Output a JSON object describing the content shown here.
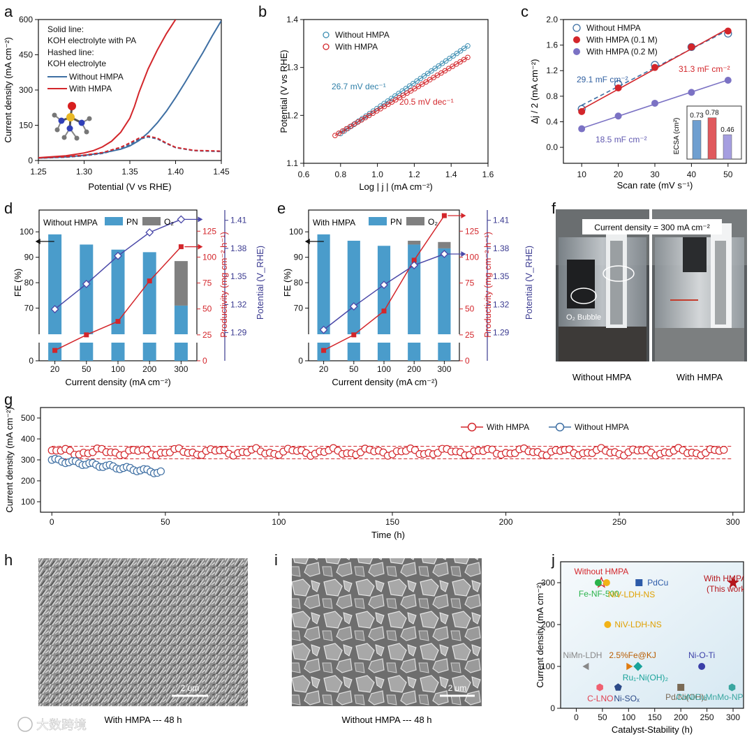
{
  "chart_data": [
    {
      "panel": "a",
      "type": "line",
      "xlabel": "Potential (V vs RHE)",
      "ylabel": "Current density (mA cm⁻²)",
      "xlim": [
        1.25,
        1.45
      ],
      "ylim": [
        0,
        600
      ],
      "xticks": [
        1.25,
        1.3,
        1.35,
        1.4,
        1.45
      ],
      "yticks": [
        0,
        150,
        300,
        450,
        600
      ],
      "notes": [
        "Solid line:",
        "KOH electrolyte with PA",
        "Hashed line:",
        "KOH electrolyte"
      ],
      "series": [
        {
          "name": "Without HMPA",
          "color": "#3e6fa3",
          "style": "solid",
          "x": [
            1.25,
            1.28,
            1.3,
            1.32,
            1.34,
            1.35,
            1.36,
            1.37,
            1.38,
            1.39,
            1.4,
            1.41,
            1.42,
            1.43,
            1.44,
            1.45
          ],
          "y": [
            10,
            15,
            22,
            32,
            48,
            62,
            85,
            118,
            160,
            210,
            268,
            330,
            395,
            460,
            530,
            595
          ]
        },
        {
          "name": "With HMPA",
          "color": "#d3262b",
          "style": "solid",
          "x": [
            1.25,
            1.28,
            1.3,
            1.31,
            1.32,
            1.33,
            1.34,
            1.35,
            1.355,
            1.36,
            1.37,
            1.38,
            1.39,
            1.4
          ],
          "y": [
            12,
            20,
            32,
            42,
            58,
            82,
            120,
            180,
            230,
            290,
            390,
            470,
            540,
            600
          ]
        },
        {
          "name": "Without HMPA (KOH)",
          "color": "#3e6fa3",
          "style": "dashed",
          "x": [
            1.25,
            1.28,
            1.3,
            1.32,
            1.34,
            1.35,
            1.36,
            1.37,
            1.38,
            1.39,
            1.4,
            1.42,
            1.45
          ],
          "y": [
            10,
            14,
            20,
            30,
            50,
            68,
            90,
            100,
            92,
            72,
            55,
            42,
            38
          ]
        },
        {
          "name": "With HMPA (KOH)",
          "color": "#d3262b",
          "style": "dashed",
          "x": [
            1.25,
            1.28,
            1.3,
            1.32,
            1.34,
            1.35,
            1.36,
            1.37,
            1.38,
            1.39,
            1.4,
            1.42,
            1.45
          ],
          "y": [
            11,
            16,
            23,
            34,
            56,
            75,
            95,
            104,
            95,
            74,
            56,
            43,
            40
          ]
        }
      ]
    },
    {
      "panel": "b",
      "type": "scatter",
      "xlabel": "Log | j | (mA cm⁻²)",
      "ylabel": "Potential (V vs RHE)",
      "xlim": [
        0.6,
        1.6
      ],
      "ylim": [
        1.1,
        1.4
      ],
      "xticks": [
        0.6,
        0.8,
        1.0,
        1.2,
        1.4,
        1.6
      ],
      "yticks": [
        1.1,
        1.2,
        1.3,
        1.4
      ],
      "series": [
        {
          "name": "Without HMPA",
          "color": "#3e8fb3",
          "x0": 0.8,
          "y0": 1.162,
          "x1": 1.49,
          "y1": 1.345,
          "slope_label": "26.7 mV dec⁻¹"
        },
        {
          "name": "With HMPA",
          "color": "#d3262b",
          "x0": 0.77,
          "y0": 1.158,
          "x1": 1.49,
          "y1": 1.321,
          "slope_label": "20.5 mV dec⁻¹"
        }
      ]
    },
    {
      "panel": "c",
      "type": "scatter",
      "xlabel": "Scan rate (mV s⁻¹)",
      "ylabel": "Δj / 2 (mA cm⁻²)",
      "xlim": [
        5,
        55
      ],
      "ylim": [
        -0.25,
        2.0
      ],
      "xticks": [
        10,
        20,
        30,
        40,
        50
      ],
      "yticks": [
        0.0,
        0.4,
        0.8,
        1.2,
        1.6,
        2.0
      ],
      "series": [
        {
          "name": "Without HMPA",
          "color": "#3e6fa3",
          "marker": "open",
          "x": [
            10,
            20,
            30,
            40,
            50
          ],
          "y": [
            0.6,
            0.99,
            1.29,
            1.57,
            1.78
          ],
          "slope_label": "29.1 mF cm⁻²"
        },
        {
          "name": "With HMPA (0.1 M)",
          "color": "#d3262b",
          "marker": "filled",
          "x": [
            10,
            20,
            30,
            40,
            50
          ],
          "y": [
            0.56,
            0.93,
            1.25,
            1.57,
            1.82
          ],
          "slope_label": "31.3 mF cm⁻²"
        },
        {
          "name": "With HMPA (0.2 M)",
          "color": "#7b72c4",
          "marker": "filled",
          "x": [
            10,
            20,
            30,
            40,
            50
          ],
          "y": [
            0.29,
            0.49,
            0.69,
            0.86,
            1.05
          ],
          "slope_label": "18.5 mF cm⁻²"
        }
      ],
      "inset": {
        "ylabel": "ECSA (cm²)",
        "values": [
          0.73,
          0.78,
          0.46
        ],
        "labels": [
          "0.73",
          "0.78",
          "0.46"
        ],
        "colors": [
          "#6f9fd0",
          "#e0595d",
          "#a59ee0"
        ]
      }
    },
    {
      "panel": "d",
      "type": "bar",
      "title": "Without HMPA",
      "categories": [
        "20",
        "50",
        "100",
        "200",
        "300"
      ],
      "xlabel": "Current density (mA cm⁻²)",
      "ylabel": "FE (%)",
      "y2label": "Productivity (mg cm⁻² h⁻¹)",
      "y3label": "Potential (V_RHE)",
      "fe_ticks": [
        "0",
        "70",
        "80",
        "90",
        "100"
      ],
      "prod_ticks": [
        "0",
        "25",
        "50",
        "75",
        "100",
        "125"
      ],
      "pot_ticks": [
        "1.29",
        "1.32",
        "1.35",
        "1.38",
        "1.41"
      ],
      "legend": [
        "PN",
        "O₂"
      ],
      "fe_pn": [
        99,
        95,
        93,
        92,
        71
      ],
      "fe_o2": [
        0,
        0,
        0,
        0,
        17.5
      ],
      "fe_total": [
        99,
        95,
        93,
        92,
        88.5
      ],
      "productivity": [
        10,
        25,
        38,
        77,
        110
      ],
      "potential": [
        1.315,
        1.342,
        1.372,
        1.397,
        1.411
      ]
    },
    {
      "panel": "e",
      "type": "bar",
      "title": "With HMPA",
      "categories": [
        "20",
        "50",
        "100",
        "200",
        "300"
      ],
      "xlabel": "Current density (mA cm⁻²)",
      "ylabel": "FE (%)",
      "y2label": "Productivity (mg cm⁻² h⁻¹)",
      "y3label": "Potential (V_RHE)",
      "fe_ticks": [
        "0",
        "70",
        "80",
        "90",
        "100"
      ],
      "prod_ticks": [
        "0",
        "25",
        "50",
        "75",
        "100",
        "125"
      ],
      "pot_ticks": [
        "1.29",
        "1.32",
        "1.35",
        "1.38",
        "1.41"
      ],
      "legend": [
        "PN",
        "O₂"
      ],
      "fe_pn": [
        99,
        96.5,
        94.5,
        95,
        93.5
      ],
      "fe_o2": [
        0,
        0,
        0,
        1.5,
        2.5
      ],
      "fe_total": [
        99,
        96.5,
        94.5,
        96.5,
        96
      ],
      "productivity": [
        10,
        25,
        48,
        97,
        140
      ],
      "potential": [
        1.293,
        1.318,
        1.341,
        1.362,
        1.374
      ]
    },
    {
      "panel": "g",
      "type": "scatter",
      "xlabel": "Time (h)",
      "ylabel": "Current density (mA cm⁻²)",
      "xlim": [
        -5,
        305
      ],
      "ylim": [
        50,
        550
      ],
      "xticks": [
        0,
        50,
        100,
        150,
        200,
        250,
        300
      ],
      "yticks": [
        100,
        200,
        300,
        400,
        500
      ],
      "reference_lines": [
        365,
        305
      ],
      "series": [
        {
          "name": "With HMPA",
          "color": "#d3262b",
          "x_start": 0,
          "x_end": 297,
          "mean": 338,
          "amplitude": 12
        },
        {
          "name": "Without HMPA",
          "color": "#3e6fa3",
          "x_start": 0,
          "x_end": 48,
          "y_start": 300,
          "y_end": 240
        }
      ]
    },
    {
      "panel": "j",
      "type": "scatter",
      "xlabel": "Catalyst-Stability (h)",
      "ylabel": "Current density (mA cm⁻²)",
      "xlim": [
        -30,
        320
      ],
      "ylim": [
        0,
        350
      ],
      "xticks": [
        0,
        50,
        100,
        150,
        200,
        250,
        300
      ],
      "yticks": [
        0,
        100,
        200,
        300
      ],
      "points": [
        {
          "label": "Without HMPA",
          "x": 48,
          "y": 300,
          "marker": "star-open",
          "color": "#d3262b",
          "label_color": "#d3262b"
        },
        {
          "label": "Fe-NF-500",
          "x": 42,
          "y": 300,
          "marker": "circle",
          "color": "#2ab34a",
          "label_color": "#2ab34a"
        },
        {
          "label": "NiV-LDH-NS",
          "x": 58,
          "y": 300,
          "marker": "circle",
          "color": "#f2b318",
          "label_color": "#e0a000"
        },
        {
          "label": "PdCu",
          "x": 120,
          "y": 300,
          "marker": "square",
          "color": "#2c5aa8",
          "label_color": "#2c5aa8"
        },
        {
          "label": "With HMPA",
          "sublabel": "(This work)",
          "x": 300,
          "y": 300,
          "marker": "star",
          "color": "#b5161c",
          "label_color": "#b5161c"
        },
        {
          "label": "NiV-LDH-NS",
          "x": 60,
          "y": 200,
          "marker": "circle",
          "color": "#f2b318",
          "label_color": "#e0a000"
        },
        {
          "label": "NiMn-LDH",
          "x": 20,
          "y": 100,
          "marker": "tri-left",
          "color": "#888888",
          "label_color": "#888888"
        },
        {
          "label": "2.5%Fe@KJ",
          "x": 100,
          "y": 100,
          "marker": "tri-right",
          "color": "#e07b10",
          "label_color": "#b85c00"
        },
        {
          "label": "Ru₁-Ni(OH)₂",
          "x": 118,
          "y": 100,
          "marker": "diamond",
          "color": "#1aa39a",
          "label_color": "#1aa39a"
        },
        {
          "label": "Ni-O-Ti",
          "x": 240,
          "y": 100,
          "marker": "circle",
          "color": "#3b3fa8",
          "label_color": "#3b3fa8"
        },
        {
          "label": "Pd/Ni(OH)₂",
          "x": 200,
          "y": 50,
          "marker": "square",
          "color": "#7a6a55",
          "label_color": "#7a6a55"
        },
        {
          "label": "C-LNO",
          "x": 45,
          "y": 50,
          "marker": "hexagon",
          "color": "#f06070",
          "label_color": "#e04050"
        },
        {
          "label": "Ni-SOₓ",
          "x": 80,
          "y": 50,
          "marker": "pentagon",
          "color": "#2c4a88",
          "label_color": "#2c4a88"
        },
        {
          "label": "CoNiCuMnMo-NPs",
          "x": 298,
          "y": 50,
          "marker": "hexagon",
          "color": "#3aa6a0",
          "label_color": "#3aa6a0"
        }
      ]
    }
  ],
  "panel_letters": [
    "a",
    "b",
    "c",
    "d",
    "e",
    "f",
    "g",
    "h",
    "i",
    "j"
  ],
  "legend_a": [
    "Without HMPA",
    "With HMPA"
  ],
  "legend_b": [
    "Without HMPA",
    "With HMPA"
  ],
  "legend_g": [
    "With HMPA",
    "Without HMPA"
  ],
  "photo_f": {
    "banner": "Current density = 300 mA cm⁻²",
    "bubble_label": "O₂ Bubble",
    "left_caption": "Without HMPA",
    "right_caption": "With HMPA"
  },
  "sem": {
    "h_caption": "With HMPA --- 48 h",
    "i_caption": "Without HMPA --- 48 h",
    "scale_label": "2 um"
  },
  "watermark": "大数跨境"
}
